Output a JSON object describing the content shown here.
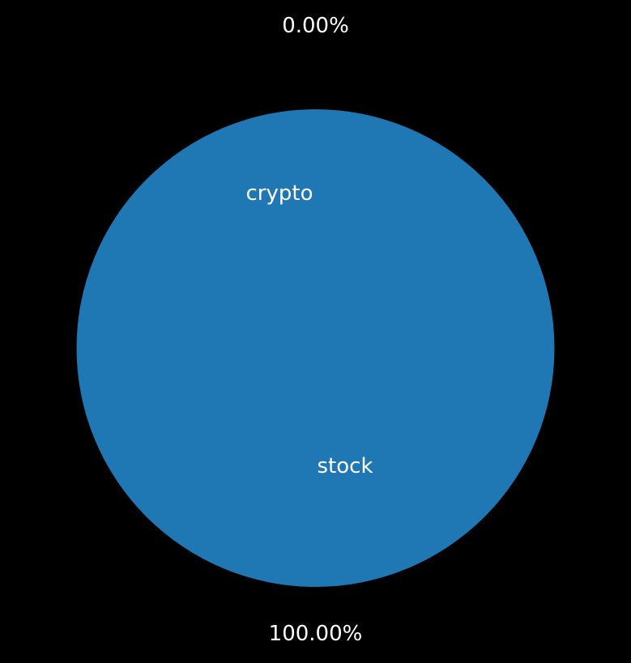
{
  "chart_data": {
    "type": "pie",
    "slices": [
      {
        "label": "crypto",
        "value": 0.0,
        "pct_label": "0.00%",
        "color": "#1f77b4"
      },
      {
        "label": "stock",
        "value": 100.0,
        "pct_label": "100.00%",
        "color": "#1f77b4"
      }
    ],
    "background": "#000000",
    "text_color": "#ffffff",
    "edge_color": "#1f77b4"
  }
}
